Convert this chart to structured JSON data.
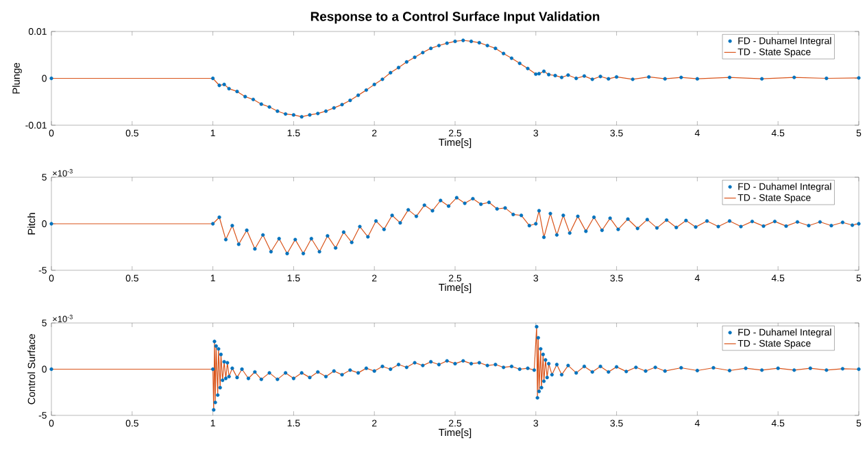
{
  "chart_data": [
    {
      "type": "line",
      "title": "Response to a Control Surface Input Validation",
      "xlabel": "Time[s]",
      "ylabel": "Plunge",
      "xlim": [
        0,
        5
      ],
      "xticks": [
        0,
        0.5,
        1,
        1.5,
        2,
        2.5,
        3,
        3.5,
        4,
        4.5,
        5
      ],
      "ylim": [
        -0.01,
        0.01
      ],
      "yticks": [
        -0.01,
        0,
        0.01
      ],
      "legend": "top right",
      "x": [
        0,
        1.0,
        1.04,
        1.07,
        1.1,
        1.15,
        1.2,
        1.25,
        1.3,
        1.35,
        1.4,
        1.45,
        1.5,
        1.55,
        1.6,
        1.65,
        1.7,
        1.75,
        1.8,
        1.85,
        1.9,
        1.95,
        2.0,
        2.05,
        2.1,
        2.15,
        2.2,
        2.25,
        2.3,
        2.35,
        2.4,
        2.45,
        2.5,
        2.55,
        2.6,
        2.65,
        2.7,
        2.75,
        2.8,
        2.85,
        2.9,
        2.95,
        3.0,
        3.02,
        3.05,
        3.08,
        3.12,
        3.16,
        3.2,
        3.25,
        3.3,
        3.35,
        3.4,
        3.45,
        3.5,
        3.6,
        3.7,
        3.8,
        3.9,
        4.0,
        4.2,
        4.4,
        4.6,
        4.8,
        5.0
      ],
      "series": [
        {
          "name": "FD - Duhamel Integral",
          "type": "scatter",
          "color": "#0072bd",
          "values": [
            0,
            0,
            -0.0015,
            -0.0013,
            -0.0022,
            -0.0028,
            -0.0039,
            -0.0045,
            -0.0055,
            -0.0061,
            -0.007,
            -0.0076,
            -0.0078,
            -0.0082,
            -0.0078,
            -0.0075,
            -0.007,
            -0.0063,
            -0.0056,
            -0.0047,
            -0.0036,
            -0.0025,
            -0.0013,
            -0.0002,
            0.0012,
            0.0023,
            0.0035,
            0.0045,
            0.0055,
            0.0064,
            0.007,
            0.0075,
            0.0079,
            0.0081,
            0.0079,
            0.0076,
            0.007,
            0.0064,
            0.0053,
            0.0043,
            0.0032,
            0.0021,
            0.0009,
            0.001,
            0.0015,
            0.0008,
            0.0006,
            0.0002,
            0.0007,
            0,
            0.0005,
            -0.0002,
            0.0004,
            -0.0001,
            0.0003,
            -0.0002,
            0.0003,
            -0.0001,
            0.0002,
            -0.0001,
            0.0002,
            -0.0001,
            0.0002,
            0,
            0.0001
          ]
        },
        {
          "name": "TD - State Space",
          "line_style": "solid",
          "color": "#d95319",
          "values": [
            0,
            0,
            -0.0015,
            -0.0013,
            -0.0022,
            -0.0028,
            -0.0039,
            -0.0045,
            -0.0055,
            -0.0061,
            -0.007,
            -0.0076,
            -0.0078,
            -0.0082,
            -0.0078,
            -0.0075,
            -0.007,
            -0.0063,
            -0.0056,
            -0.0047,
            -0.0036,
            -0.0025,
            -0.0013,
            -0.0002,
            0.0012,
            0.0023,
            0.0035,
            0.0045,
            0.0055,
            0.0064,
            0.007,
            0.0075,
            0.0079,
            0.0081,
            0.0079,
            0.0076,
            0.007,
            0.0064,
            0.0053,
            0.0043,
            0.0032,
            0.0021,
            0.0009,
            0.001,
            0.0015,
            0.0008,
            0.0006,
            0.0002,
            0.0007,
            0,
            0.0005,
            -0.0002,
            0.0004,
            -0.0001,
            0.0003,
            -0.0002,
            0.0003,
            -0.0001,
            0.0002,
            -0.0001,
            0.0002,
            -0.0001,
            0.0002,
            0,
            0.0001
          ]
        }
      ]
    },
    {
      "type": "line",
      "xlabel": "Time[s]",
      "ylabel": "Pitch",
      "xlim": [
        0,
        5
      ],
      "xticks": [
        0,
        0.5,
        1,
        1.5,
        2,
        2.5,
        3,
        3.5,
        4,
        4.5,
        5
      ],
      "ylim": [
        -5,
        5
      ],
      "yticks": [
        -5,
        0,
        5
      ],
      "legend": "top right",
      "annotations": [
        "×10$^{-3}$"
      ],
      "x": [
        0,
        1.0,
        1.04,
        1.08,
        1.12,
        1.16,
        1.21,
        1.26,
        1.31,
        1.36,
        1.41,
        1.46,
        1.51,
        1.56,
        1.61,
        1.66,
        1.71,
        1.76,
        1.81,
        1.86,
        1.91,
        1.96,
        2.01,
        2.06,
        2.11,
        2.16,
        2.21,
        2.26,
        2.31,
        2.36,
        2.41,
        2.46,
        2.51,
        2.56,
        2.61,
        2.66,
        2.71,
        2.76,
        2.81,
        2.86,
        2.91,
        2.96,
        3.0,
        3.02,
        3.05,
        3.09,
        3.13,
        3.17,
        3.21,
        3.26,
        3.31,
        3.36,
        3.41,
        3.46,
        3.51,
        3.57,
        3.63,
        3.69,
        3.75,
        3.81,
        3.87,
        3.93,
        3.99,
        4.06,
        4.13,
        4.2,
        4.27,
        4.34,
        4.41,
        4.48,
        4.55,
        4.62,
        4.69,
        4.76,
        4.83,
        4.9,
        4.96,
        5.0
      ],
      "series": [
        {
          "name": "FD - Duhamel Integral",
          "type": "scatter",
          "color": "#0072bd",
          "values": [
            0,
            0,
            0.7,
            -1.7,
            -0.2,
            -2.2,
            -0.7,
            -2.7,
            -1.2,
            -3.0,
            -1.6,
            -3.2,
            -1.7,
            -3.2,
            -1.6,
            -3.0,
            -1.3,
            -2.6,
            -0.9,
            -2.0,
            -0.3,
            -1.4,
            0.3,
            -0.6,
            0.9,
            0.1,
            1.5,
            0.8,
            2.0,
            1.4,
            2.5,
            1.9,
            2.8,
            2.2,
            2.7,
            2.1,
            2.3,
            1.6,
            1.7,
            1.0,
            0.9,
            -0.2,
            0.0,
            1.4,
            -1.45,
            1.1,
            -1.2,
            0.9,
            -1.0,
            0.8,
            -0.8,
            0.7,
            -0.7,
            0.6,
            -0.6,
            0.5,
            -0.5,
            0.45,
            -0.45,
            0.4,
            -0.4,
            0.35,
            -0.35,
            0.3,
            -0.3,
            0.3,
            -0.3,
            0.25,
            -0.25,
            0.25,
            -0.25,
            0.2,
            -0.2,
            0.2,
            -0.2,
            0.15,
            -0.15,
            0.0
          ]
        },
        {
          "name": "TD - State Space",
          "line_style": "solid",
          "color": "#d95319",
          "values": [
            0,
            0,
            0.7,
            -1.7,
            -0.2,
            -2.2,
            -0.7,
            -2.7,
            -1.2,
            -3.0,
            -1.6,
            -3.2,
            -1.7,
            -3.2,
            -1.6,
            -3.0,
            -1.3,
            -2.6,
            -0.9,
            -2.0,
            -0.3,
            -1.4,
            0.3,
            -0.6,
            0.9,
            0.1,
            1.5,
            0.8,
            2.0,
            1.4,
            2.5,
            1.9,
            2.8,
            2.2,
            2.7,
            2.1,
            2.3,
            1.6,
            1.7,
            1.0,
            0.9,
            -0.2,
            0.0,
            1.4,
            -1.45,
            1.1,
            -1.2,
            0.9,
            -1.0,
            0.8,
            -0.8,
            0.7,
            -0.7,
            0.6,
            -0.6,
            0.5,
            -0.5,
            0.45,
            -0.45,
            0.4,
            -0.4,
            0.35,
            -0.35,
            0.3,
            -0.3,
            0.3,
            -0.3,
            0.25,
            -0.25,
            0.25,
            -0.25,
            0.2,
            -0.2,
            0.2,
            -0.2,
            0.15,
            -0.15,
            0.0
          ]
        }
      ]
    },
    {
      "type": "line",
      "xlabel": "Time[s]",
      "ylabel": "Control Surface",
      "xlim": [
        0,
        5
      ],
      "xticks": [
        0,
        0.5,
        1,
        1.5,
        2,
        2.5,
        3,
        3.5,
        4,
        4.5,
        5
      ],
      "ylim": [
        -5,
        5
      ],
      "yticks": [
        -5,
        0,
        5
      ],
      "legend": "top right",
      "annotations": [
        "×10$^{-3}$"
      ],
      "x": [
        0,
        1.0,
        1.005,
        1.01,
        1.015,
        1.02,
        1.03,
        1.035,
        1.045,
        1.05,
        1.06,
        1.07,
        1.08,
        1.09,
        1.1,
        1.12,
        1.15,
        1.18,
        1.22,
        1.26,
        1.3,
        1.35,
        1.4,
        1.45,
        1.5,
        1.55,
        1.6,
        1.65,
        1.7,
        1.75,
        1.8,
        1.85,
        1.9,
        1.95,
        2.0,
        2.05,
        2.1,
        2.15,
        2.2,
        2.25,
        2.3,
        2.35,
        2.4,
        2.45,
        2.5,
        2.55,
        2.6,
        2.65,
        2.7,
        2.75,
        2.8,
        2.85,
        2.9,
        2.95,
        2.99,
        3.005,
        3.01,
        3.015,
        3.02,
        3.03,
        3.035,
        3.045,
        3.05,
        3.06,
        3.07,
        3.08,
        3.1,
        3.13,
        3.16,
        3.2,
        3.25,
        3.3,
        3.35,
        3.4,
        3.45,
        3.5,
        3.56,
        3.62,
        3.68,
        3.74,
        3.8,
        3.9,
        4.0,
        4.1,
        4.2,
        4.3,
        4.4,
        4.5,
        4.6,
        4.7,
        4.8,
        4.9,
        5.0
      ],
      "series": [
        {
          "name": "FD - Duhamel Integral",
          "type": "scatter",
          "color": "#0072bd",
          "values": [
            0,
            0,
            -4.4,
            3.0,
            -3.6,
            2.5,
            -2.8,
            2.2,
            -2.0,
            1.6,
            -1.2,
            0.8,
            -1.0,
            0.7,
            -0.8,
            0.1,
            -0.9,
            0.0,
            -1.0,
            -0.3,
            -1.1,
            -0.4,
            -1.1,
            -0.4,
            -1.0,
            -0.4,
            -0.9,
            -0.3,
            -0.8,
            -0.2,
            -0.6,
            -0.1,
            -0.4,
            0.1,
            -0.2,
            0.3,
            0.0,
            0.5,
            0.2,
            0.7,
            0.4,
            0.8,
            0.5,
            0.9,
            0.6,
            0.9,
            0.6,
            0.7,
            0.4,
            0.5,
            0.2,
            0.3,
            0.0,
            0.1,
            -0.1,
            4.6,
            -3.1,
            3.4,
            -2.4,
            2.2,
            -2.0,
            1.6,
            -1.3,
            1.0,
            -0.9,
            0.6,
            -0.6,
            0.5,
            -0.6,
            0.4,
            -0.4,
            0.3,
            -0.3,
            0.3,
            -0.3,
            0.25,
            -0.25,
            0.2,
            -0.2,
            0.2,
            -0.2,
            0.15,
            -0.15,
            0.15,
            -0.15,
            0.1,
            -0.1,
            0.1,
            -0.1,
            0.1,
            -0.1,
            0.05,
            0.0
          ]
        },
        {
          "name": "TD - State Space",
          "line_style": "solid",
          "color": "#d95319",
          "values": [
            0,
            0,
            -4.4,
            3.0,
            -3.6,
            2.5,
            -2.8,
            2.2,
            -2.0,
            1.6,
            -1.2,
            0.8,
            -1.0,
            0.7,
            -0.8,
            0.1,
            -0.9,
            0.0,
            -1.0,
            -0.3,
            -1.1,
            -0.4,
            -1.1,
            -0.4,
            -1.0,
            -0.4,
            -0.9,
            -0.3,
            -0.8,
            -0.2,
            -0.6,
            -0.1,
            -0.4,
            0.1,
            -0.2,
            0.3,
            0.0,
            0.5,
            0.2,
            0.7,
            0.4,
            0.8,
            0.5,
            0.9,
            0.6,
            0.9,
            0.6,
            0.7,
            0.4,
            0.5,
            0.2,
            0.3,
            0.0,
            0.1,
            -0.1,
            4.6,
            -3.1,
            3.4,
            -2.4,
            2.2,
            -2.0,
            1.6,
            -1.3,
            1.0,
            -0.9,
            0.6,
            -0.6,
            0.5,
            -0.6,
            0.4,
            -0.4,
            0.3,
            -0.3,
            0.3,
            -0.3,
            0.25,
            -0.25,
            0.2,
            -0.2,
            0.2,
            -0.2,
            0.15,
            -0.15,
            0.15,
            -0.15,
            0.1,
            -0.1,
            0.1,
            -0.1,
            0.1,
            -0.1,
            0.05,
            0.0
          ]
        }
      ]
    }
  ]
}
